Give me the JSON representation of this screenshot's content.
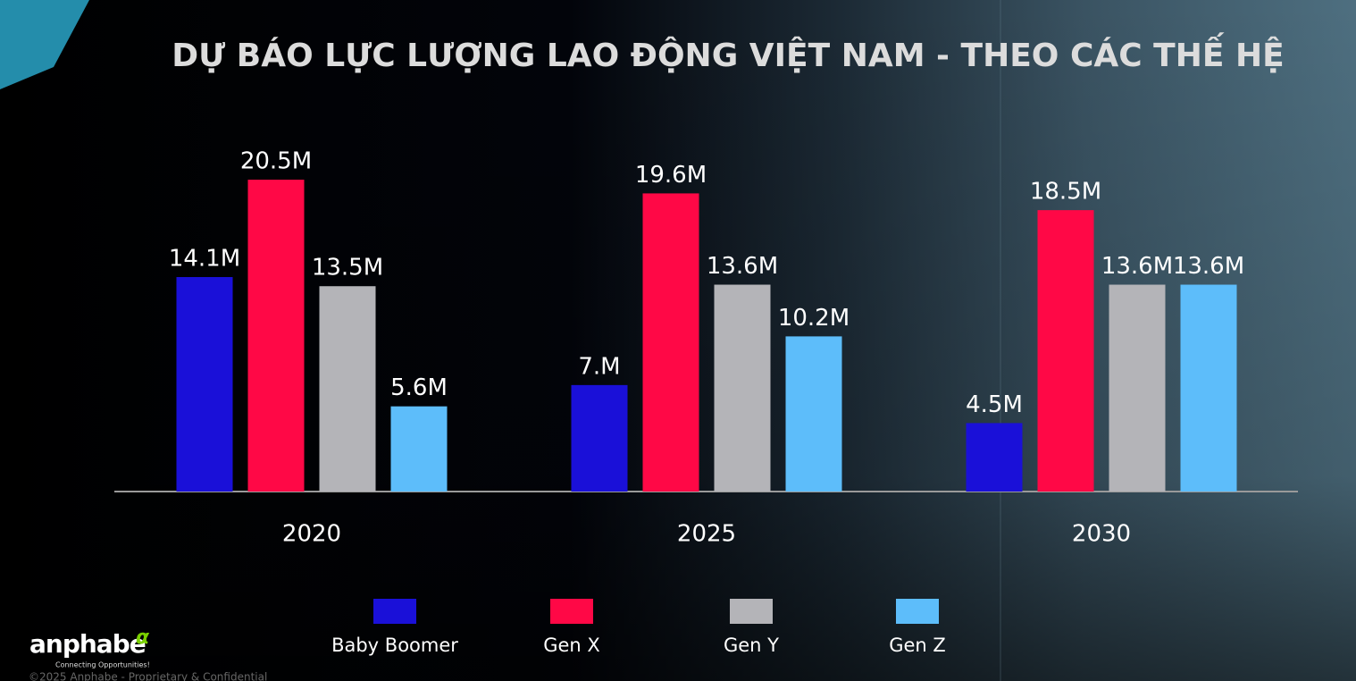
{
  "chart_data": {
    "type": "bar",
    "title": "DỰ BÁO LỰC LƯỢNG LAO ĐỘNG VIỆT NAM - THEO CÁC THẾ HỆ",
    "categories": [
      "2020",
      "2025",
      "2030"
    ],
    "series": [
      {
        "name": "Baby Boomer",
        "color": "#1a10d8",
        "values": [
          14.1,
          7,
          4.5
        ],
        "value_labels": [
          "14.1M",
          "7.M",
          "4.5M"
        ]
      },
      {
        "name": "Gen X",
        "color": "#ff0846",
        "values": [
          20.5,
          19.6,
          18.5
        ],
        "value_labels": [
          "20.5M",
          "19.6M",
          "18.5M"
        ]
      },
      {
        "name": "Gen Y",
        "color": "#b4b4b8",
        "values": [
          13.5,
          13.6,
          13.6
        ],
        "value_labels": [
          "13.5M",
          "13.6M",
          "13.6M"
        ]
      },
      {
        "name": "Gen Z",
        "color": "#5dbdfa",
        "values": [
          5.6,
          10.2,
          13.6
        ],
        "value_labels": [
          "5.6M",
          "10.2M",
          "13.6M"
        ]
      }
    ]
  },
  "brand": {
    "name": "anphabe",
    "mark": "α",
    "tagline": "Connecting Opportunities!",
    "copyright": "©2025 Anphabe - Proprietary & Confidential"
  }
}
